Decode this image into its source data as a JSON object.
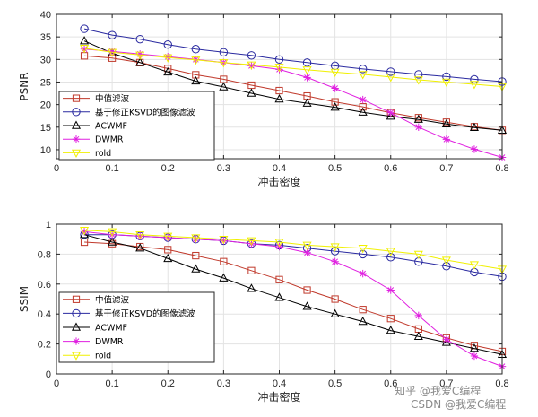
{
  "watermark": {
    "line1": "知乎 @我爱C编程",
    "line2": "CSDN @我爱C编程"
  },
  "legend_labels": [
    "中值滤波",
    "基于修正KSVD的图像滤波",
    "ACWMF",
    "DWMR",
    "rold"
  ],
  "colors": {
    "median": "#c0392b",
    "ksvd": "#2a2aa0",
    "acwmf": "#000000",
    "dwmr": "#e020e0",
    "rold": "#f0f000"
  },
  "chart_data": [
    {
      "type": "line",
      "xlabel": "冲击密度",
      "ylabel": "PSNR",
      "xlim": [
        0,
        0.8
      ],
      "ylim": [
        8,
        40
      ],
      "xticks": [
        "0",
        "0.1",
        "0.2",
        "0.3",
        "0.4",
        "0.5",
        "0.6",
        "0.7",
        "0.8"
      ],
      "yticks": [
        "10",
        "15",
        "20",
        "25",
        "30",
        "35",
        "40"
      ],
      "grid": true,
      "legend_position": "bottom-left",
      "x": [
        0.05,
        0.1,
        0.15,
        0.2,
        0.25,
        0.3,
        0.35,
        0.4,
        0.45,
        0.5,
        0.55,
        0.6,
        0.65,
        0.7,
        0.75,
        0.8
      ],
      "series": [
        {
          "name": "中值滤波",
          "marker": "square",
          "values": [
            30.8,
            30.3,
            29.3,
            28.0,
            26.6,
            25.6,
            24.3,
            23.1,
            21.9,
            20.6,
            19.5,
            18.2,
            17.1,
            16.1,
            15.1,
            14.3
          ]
        },
        {
          "name": "基于修正KSVD的图像滤波",
          "marker": "circle",
          "values": [
            36.8,
            35.4,
            34.5,
            33.3,
            32.3,
            31.6,
            30.9,
            30.0,
            29.3,
            28.6,
            27.9,
            27.3,
            26.7,
            26.2,
            25.6,
            25.1
          ]
        },
        {
          "name": "ACWMF",
          "marker": "triangle",
          "values": [
            34.1,
            31.4,
            29.3,
            27.2,
            25.2,
            23.9,
            22.5,
            21.2,
            20.3,
            19.4,
            18.3,
            17.4,
            16.7,
            15.7,
            14.9,
            14.3
          ]
        },
        {
          "name": "DWMR",
          "marker": "asterisk",
          "values": [
            32.3,
            31.8,
            31.2,
            30.6,
            30.0,
            29.3,
            28.6,
            27.8,
            26.0,
            23.6,
            21.1,
            18.2,
            15.0,
            12.3,
            10.1,
            8.3
          ]
        },
        {
          "name": "rold",
          "marker": "triangle-down",
          "values": [
            32.5,
            31.6,
            31.0,
            30.4,
            29.9,
            29.3,
            28.8,
            28.3,
            27.7,
            27.2,
            26.7,
            26.1,
            25.5,
            25.0,
            24.5,
            24.0
          ]
        }
      ]
    },
    {
      "type": "line",
      "xlabel": "冲击密度",
      "ylabel": "SSIM",
      "xlim": [
        0,
        0.8
      ],
      "ylim": [
        0,
        1
      ],
      "xticks": [
        "0",
        "0.1",
        "0.2",
        "0.3",
        "0.4",
        "0.5",
        "0.6",
        "0.7",
        "0.8"
      ],
      "yticks": [
        "0",
        "0.2",
        "0.4",
        "0.6",
        "0.8",
        "1"
      ],
      "grid": true,
      "legend_position": "bottom-left",
      "x": [
        0.05,
        0.1,
        0.15,
        0.2,
        0.25,
        0.3,
        0.35,
        0.4,
        0.45,
        0.5,
        0.55,
        0.6,
        0.65,
        0.7,
        0.75,
        0.8
      ],
      "series": [
        {
          "name": "中值滤波",
          "marker": "square",
          "values": [
            0.88,
            0.87,
            0.85,
            0.83,
            0.79,
            0.75,
            0.69,
            0.63,
            0.56,
            0.5,
            0.43,
            0.37,
            0.3,
            0.24,
            0.19,
            0.15
          ]
        },
        {
          "name": "基于修正KSVD的图像滤波",
          "marker": "circle",
          "values": [
            0.93,
            0.93,
            0.92,
            0.91,
            0.9,
            0.89,
            0.87,
            0.86,
            0.84,
            0.82,
            0.8,
            0.78,
            0.75,
            0.72,
            0.68,
            0.65
          ]
        },
        {
          "name": "ACWMF",
          "marker": "triangle",
          "values": [
            0.93,
            0.88,
            0.84,
            0.77,
            0.7,
            0.64,
            0.57,
            0.51,
            0.45,
            0.4,
            0.35,
            0.29,
            0.25,
            0.21,
            0.17,
            0.13
          ]
        },
        {
          "name": "DWMR",
          "marker": "asterisk",
          "values": [
            0.95,
            0.93,
            0.92,
            0.91,
            0.9,
            0.89,
            0.87,
            0.85,
            0.81,
            0.75,
            0.67,
            0.56,
            0.39,
            0.23,
            0.12,
            0.05
          ]
        },
        {
          "name": "rold",
          "marker": "triangle-down",
          "values": [
            0.96,
            0.95,
            0.93,
            0.92,
            0.91,
            0.9,
            0.89,
            0.88,
            0.86,
            0.85,
            0.84,
            0.82,
            0.8,
            0.76,
            0.73,
            0.7
          ]
        }
      ]
    }
  ]
}
